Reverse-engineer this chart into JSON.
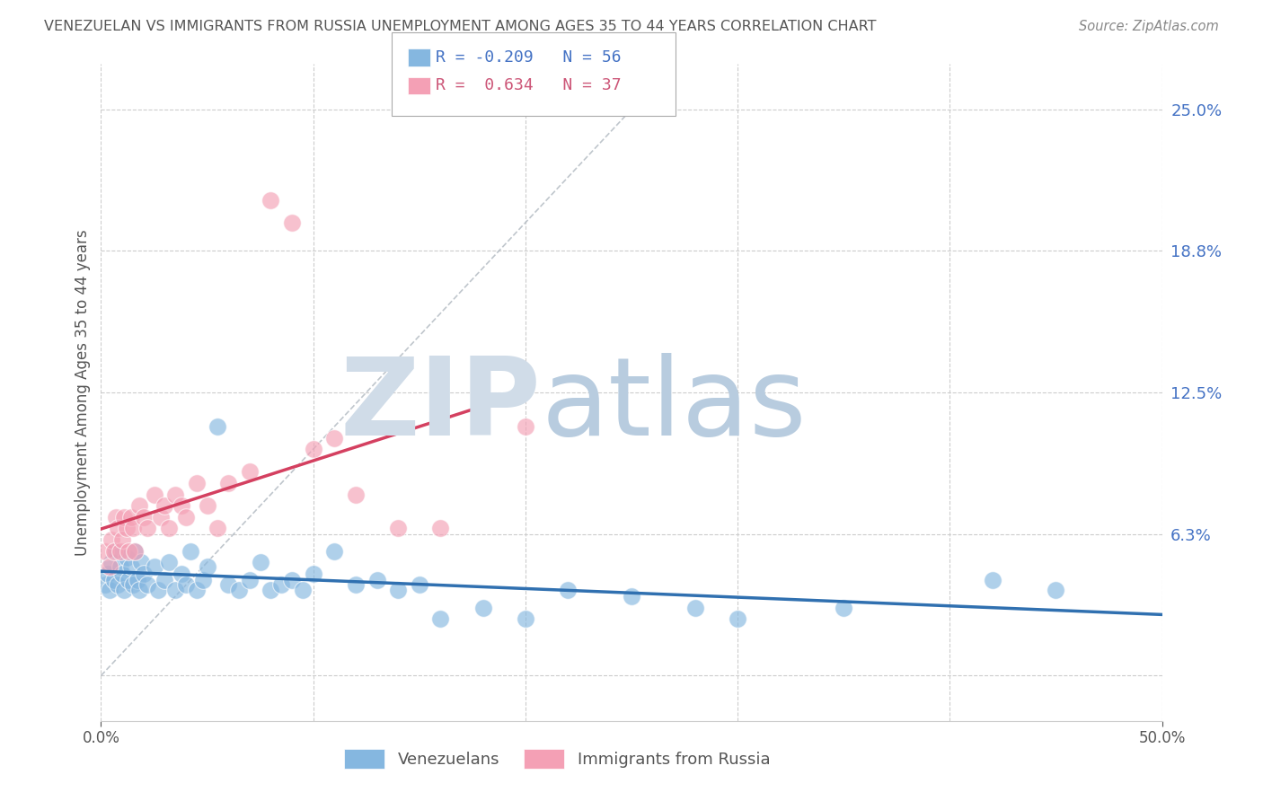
{
  "title": "VENEZUELAN VS IMMIGRANTS FROM RUSSIA UNEMPLOYMENT AMONG AGES 35 TO 44 YEARS CORRELATION CHART",
  "source": "Source: ZipAtlas.com",
  "ylabel": "Unemployment Among Ages 35 to 44 years",
  "xlim": [
    0.0,
    0.5
  ],
  "ylim": [
    -0.02,
    0.27
  ],
  "xticks": [
    0.0,
    0.1,
    0.2,
    0.3,
    0.4,
    0.5
  ],
  "ytick_positions": [
    0.0,
    0.0625,
    0.125,
    0.1875,
    0.25
  ],
  "ytick_labels": [
    "",
    "6.3%",
    "12.5%",
    "18.8%",
    "25.0%"
  ],
  "blue_R": -0.209,
  "blue_N": 56,
  "pink_R": 0.634,
  "pink_N": 37,
  "blue_color": "#85b7e0",
  "pink_color": "#f4a0b5",
  "blue_line_color": "#3070b0",
  "pink_line_color": "#d44060",
  "watermark_ZIP": "ZIP",
  "watermark_atlas": "atlas",
  "watermark_color_ZIP": "#d0dce8",
  "watermark_color_atlas": "#b8ccdf",
  "legend_label_blue": "Venezuelans",
  "legend_label_pink": "Immigrants from Russia",
  "background_color": "#ffffff",
  "grid_color": "#cccccc",
  "title_color": "#555555",
  "right_tick_color": "#4472c4",
  "blue_scatter_x": [
    0.002,
    0.003,
    0.004,
    0.005,
    0.006,
    0.007,
    0.008,
    0.009,
    0.01,
    0.011,
    0.012,
    0.013,
    0.014,
    0.015,
    0.016,
    0.017,
    0.018,
    0.019,
    0.02,
    0.022,
    0.025,
    0.027,
    0.03,
    0.032,
    0.035,
    0.038,
    0.04,
    0.042,
    0.045,
    0.048,
    0.05,
    0.055,
    0.06,
    0.065,
    0.07,
    0.075,
    0.08,
    0.085,
    0.09,
    0.095,
    0.1,
    0.11,
    0.12,
    0.13,
    0.14,
    0.15,
    0.16,
    0.18,
    0.2,
    0.22,
    0.25,
    0.28,
    0.3,
    0.35,
    0.42,
    0.45
  ],
  "blue_scatter_y": [
    0.04,
    0.045,
    0.038,
    0.05,
    0.042,
    0.055,
    0.04,
    0.048,
    0.045,
    0.038,
    0.052,
    0.042,
    0.048,
    0.04,
    0.055,
    0.042,
    0.038,
    0.05,
    0.045,
    0.04,
    0.048,
    0.038,
    0.042,
    0.05,
    0.038,
    0.045,
    0.04,
    0.055,
    0.038,
    0.042,
    0.048,
    0.11,
    0.04,
    0.038,
    0.042,
    0.05,
    0.038,
    0.04,
    0.042,
    0.038,
    0.045,
    0.055,
    0.04,
    0.042,
    0.038,
    0.04,
    0.025,
    0.03,
    0.025,
    0.038,
    0.035,
    0.03,
    0.025,
    0.03,
    0.042,
    0.038
  ],
  "pink_scatter_x": [
    0.002,
    0.004,
    0.005,
    0.006,
    0.007,
    0.008,
    0.009,
    0.01,
    0.011,
    0.012,
    0.013,
    0.014,
    0.015,
    0.016,
    0.018,
    0.02,
    0.022,
    0.025,
    0.028,
    0.03,
    0.032,
    0.035,
    0.038,
    0.04,
    0.045,
    0.05,
    0.055,
    0.06,
    0.07,
    0.08,
    0.09,
    0.1,
    0.11,
    0.12,
    0.14,
    0.16,
    0.2
  ],
  "pink_scatter_y": [
    0.055,
    0.048,
    0.06,
    0.055,
    0.07,
    0.065,
    0.055,
    0.06,
    0.07,
    0.065,
    0.055,
    0.07,
    0.065,
    0.055,
    0.075,
    0.07,
    0.065,
    0.08,
    0.07,
    0.075,
    0.065,
    0.08,
    0.075,
    0.07,
    0.085,
    0.075,
    0.065,
    0.085,
    0.09,
    0.21,
    0.2,
    0.1,
    0.105,
    0.08,
    0.065,
    0.065,
    0.11
  ]
}
